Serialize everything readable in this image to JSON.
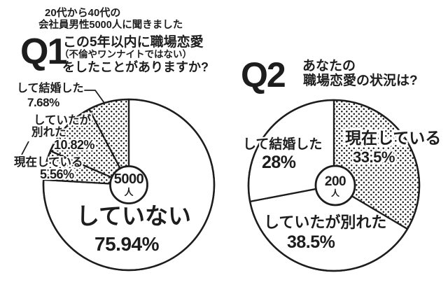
{
  "page": {
    "background": "#ffffff",
    "ink": "#1d1d1d",
    "pattern": "halftone-dots"
  },
  "q1": {
    "badge": "Q1",
    "intro": [
      "20代から40代の",
      "会社員男性5000人に聞きました"
    ],
    "question": [
      "この5年以内に職場恋愛",
      "（不倫やワンナイトではない）",
      "をしたことがありますか?"
    ],
    "center": {
      "value": "5000",
      "unit": "人"
    },
    "labels": {
      "married": {
        "name": "して結婚した",
        "pct": "7.68%"
      },
      "broke_up": {
        "name1": "していたが",
        "name2": "別れた",
        "pct": "10.82%"
      },
      "current": {
        "name": "現在している",
        "pct": "5.56%"
      },
      "none": {
        "name": "していない",
        "pct": "75.94%"
      }
    }
  },
  "q2": {
    "badge": "Q2",
    "question": [
      "あなたの",
      "職場恋愛の状況は?"
    ],
    "center": {
      "value": "200",
      "unit": "人"
    },
    "labels": {
      "current": {
        "name": "現在している",
        "pct": "33.5%"
      },
      "married": {
        "name": "して結婚した",
        "pct": "28%"
      },
      "broke_up": {
        "name": "していたが別れた",
        "pct": "38.5%"
      }
    }
  },
  "chart_data": [
    {
      "type": "pie",
      "title": "Q1 この5年以内に職場恋愛（不倫やワンナイトではない）をしたことがありますか?",
      "subtitle": "20代から40代の会社員男性5000人に聞きました",
      "sample_size": 5000,
      "center_label": "5000人",
      "start_angle_deg": 0,
      "direction": "clockwise",
      "legend_position": "none",
      "slices": [
        {
          "label": "していない",
          "value": 75.94,
          "pattern": "plain"
        },
        {
          "label": "現在している",
          "value": 5.56,
          "pattern": "dots"
        },
        {
          "label": "していたが別れた",
          "value": 10.82,
          "pattern": "dots"
        },
        {
          "label": "して結婚した",
          "value": 7.68,
          "pattern": "dots"
        }
      ]
    },
    {
      "type": "pie",
      "title": "Q2 あなたの職場恋愛の状況は?",
      "sample_size": 200,
      "center_label": "200人",
      "start_angle_deg": 0,
      "direction": "clockwise",
      "legend_position": "none",
      "slices": [
        {
          "label": "現在している",
          "value": 33.5,
          "pattern": "dots"
        },
        {
          "label": "していたが別れた",
          "value": 38.5,
          "pattern": "plain"
        },
        {
          "label": "して結婚した",
          "value": 28.0,
          "pattern": "plain"
        }
      ]
    }
  ]
}
